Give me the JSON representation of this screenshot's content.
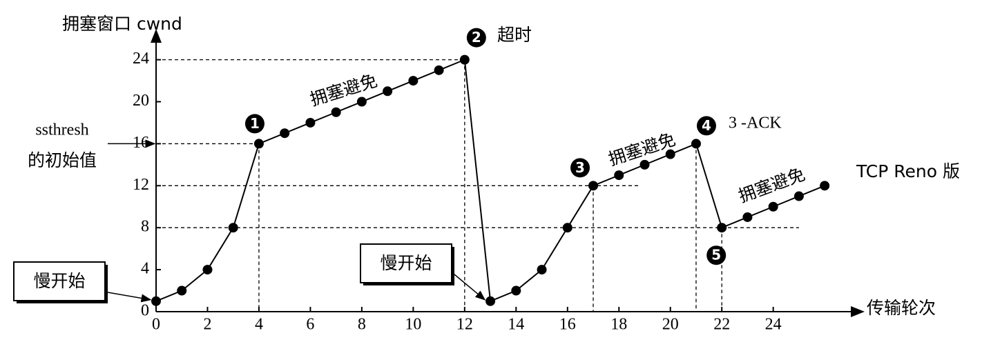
{
  "chart_data": {
    "type": "line",
    "y_label": "拥塞窗口 cwnd",
    "x_label": "传输轮次",
    "x": [
      0,
      1,
      2,
      3,
      4,
      5,
      6,
      7,
      8,
      9,
      10,
      11,
      12,
      13,
      14,
      15,
      16,
      17,
      18,
      19,
      20,
      21,
      22,
      23,
      24,
      25,
      26
    ],
    "series": [
      {
        "color": "#000000",
        "values": [
          1,
          2,
          4,
          8,
          16,
          17,
          18,
          19,
          20,
          21,
          22,
          23,
          24,
          1,
          2,
          4,
          8,
          12,
          13,
          14,
          15,
          16,
          8,
          9,
          10,
          11,
          12
        ]
      }
    ],
    "xlim": [
      0,
      27.5
    ],
    "ylim": [
      0,
      26.8
    ],
    "xticks": [
      0,
      2,
      4,
      6,
      8,
      10,
      12,
      14,
      16,
      18,
      20,
      22,
      24
    ],
    "yticks": [
      0,
      4,
      8,
      12,
      16,
      20,
      24
    ],
    "point_markers": [
      1,
      2,
      3,
      4,
      5
    ],
    "marker_notes": [
      "超时",
      "3 -ACK"
    ],
    "curve_note": "TCP Reno 版",
    "ssthresh_label": [
      "ssthresh",
      "的初始值"
    ],
    "slow_start_labels": [
      "慢开始",
      "慢开始"
    ],
    "congestion_avoidance_labels": [
      "拥塞避免",
      "拥塞避免",
      "拥塞避免"
    ]
  }
}
